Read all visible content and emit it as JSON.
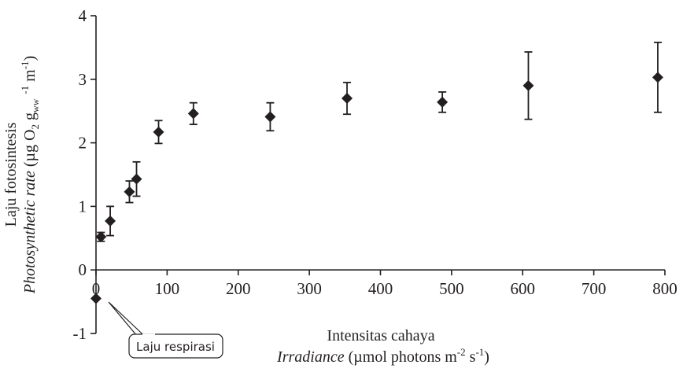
{
  "chart_data": {
    "type": "scatter",
    "title": "",
    "xlabel_line1": "Intensitas cahaya",
    "xlabel_line2_italic": "Irradiance",
    "xlabel_line2_rest": " (µmol photons m",
    "xlabel_sup1": "-2",
    "xlabel_mid": " s",
    "xlabel_sup2": "-1",
    "xlabel_end": ")",
    "ylabel_line1": "Laju fotosintesis",
    "ylabel_line2_italic": "Photosynthetic rate",
    "ylabel_line2_a": " (µg O",
    "ylabel_sub1": "2",
    "ylabel_line2_b": " g",
    "ylabel_sub2": "ww",
    "ylabel_sup1": "-1",
    "ylabel_line2_c": " m",
    "ylabel_sup2": "-1",
    "ylabel_end": ")",
    "xlim": [
      0,
      800
    ],
    "ylim": [
      -1,
      4
    ],
    "xticks": [
      "0",
      "100",
      "200",
      "300",
      "400",
      "500",
      "600",
      "700",
      "800"
    ],
    "yticks": [
      "-1",
      "0",
      "1",
      "2",
      "3",
      "4"
    ],
    "grid": false,
    "marker": "diamond",
    "color": "#231f20",
    "points": [
      {
        "x": 0,
        "y": -0.45,
        "err": 0
      },
      {
        "x": 7,
        "y": 0.52,
        "err": 0.07
      },
      {
        "x": 20,
        "y": 0.77,
        "err": 0.23
      },
      {
        "x": 47,
        "y": 1.23,
        "err": 0.17
      },
      {
        "x": 57,
        "y": 1.43,
        "err": 0.27
      },
      {
        "x": 88,
        "y": 2.17,
        "err": 0.18
      },
      {
        "x": 137,
        "y": 2.46,
        "err": 0.17
      },
      {
        "x": 245,
        "y": 2.41,
        "err": 0.22
      },
      {
        "x": 353,
        "y": 2.7,
        "err": 0.25
      },
      {
        "x": 487,
        "y": 2.64,
        "err": 0.16
      },
      {
        "x": 608,
        "y": 2.9,
        "err": 0.53
      },
      {
        "x": 790,
        "y": 3.03,
        "err": 0.55
      }
    ],
    "annotation": "Laju respirasi"
  }
}
